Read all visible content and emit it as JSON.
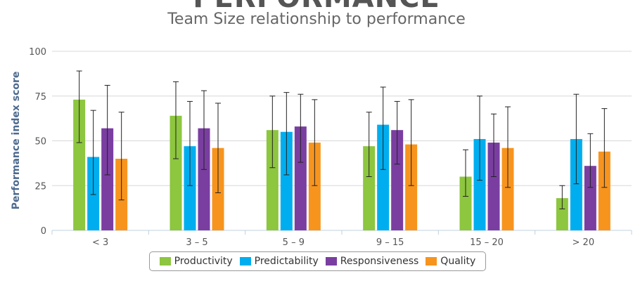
{
  "header": {
    "title": "PERFORMANCE",
    "subtitle": "Team Size relationship to performance"
  },
  "chart_data": {
    "type": "bar",
    "title": "PERFORMANCE",
    "subtitle": "Team Size relationship to performance",
    "xlabel": "",
    "ylabel": "Performance index score",
    "ylim": [
      0,
      100
    ],
    "yticks": [
      0,
      25,
      50,
      75,
      100
    ],
    "grid": true,
    "legend_position": "bottom",
    "categories": [
      "< 3",
      "3 – 5",
      "5 – 9",
      "9 – 15",
      "15 – 20",
      "> 20"
    ],
    "series": [
      {
        "name": "Productivity",
        "color": "#8dc63f",
        "values": [
          73,
          64,
          56,
          47,
          30,
          18
        ],
        "error_low": [
          49,
          40,
          35,
          30,
          19,
          12
        ],
        "error_high": [
          89,
          83,
          75,
          66,
          45,
          25
        ]
      },
      {
        "name": "Predictability",
        "color": "#00aeef",
        "values": [
          41,
          47,
          55,
          59,
          51,
          51
        ],
        "error_low": [
          20,
          25,
          31,
          34,
          28,
          26
        ],
        "error_high": [
          67,
          72,
          77,
          80,
          75,
          76
        ]
      },
      {
        "name": "Responsiveness",
        "color": "#7a3ea1",
        "values": [
          57,
          57,
          58,
          56,
          49,
          36
        ],
        "error_low": [
          31,
          34,
          38,
          37,
          30,
          24
        ],
        "error_high": [
          81,
          78,
          76,
          72,
          65,
          54
        ]
      },
      {
        "name": "Quality",
        "color": "#f7941d",
        "values": [
          40,
          46,
          49,
          48,
          46,
          44
        ],
        "error_low": [
          17,
          21,
          25,
          25,
          24,
          24
        ],
        "error_high": [
          66,
          71,
          73,
          73,
          69,
          68
        ]
      }
    ]
  }
}
